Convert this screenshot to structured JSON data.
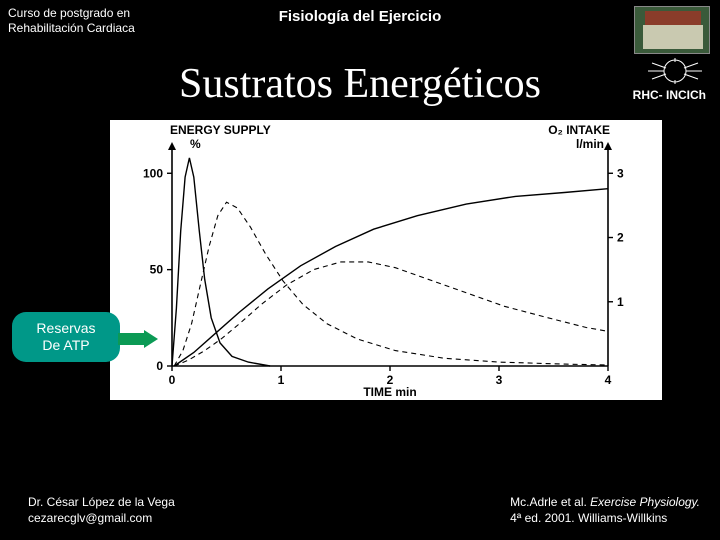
{
  "header": {
    "course_line1": "Curso de postgrado en",
    "course_line2": "Rehabilitación Cardiaca",
    "subject": "Fisiología del Ejercicio",
    "org": "RHC- INCICh"
  },
  "title": "Sustratos Energéticos",
  "callout": {
    "line1": "Reservas",
    "line2": "De ATP"
  },
  "footer": {
    "author": "Dr. César López de la Vega",
    "email": "cezarecglv@gmail.com",
    "citation_prefix": "Mc.Adrle et al. ",
    "citation_title": "Exercise Physiology.",
    "citation_suffix": "4ª ed. 2001. Williams-Willkins"
  },
  "chart": {
    "type": "line",
    "background_color": "#ffffff",
    "axis_color": "#000000",
    "line_color": "#000000",
    "line_width": 1.4,
    "dash_line_width": 1.1,
    "dash_pattern": "5,4",
    "y_left_label_top": "ENERGY SUPPLY",
    "y_left_label_unit": "%",
    "y_right_label_top": "O₂ INTAKE",
    "y_right_label_unit": "l/min",
    "x_label": "TIME min",
    "label_fontsize": 12,
    "tick_fontsize": 12,
    "x_ticks": [
      0,
      1,
      2,
      3,
      4
    ],
    "y_left_ticks": [
      0,
      50,
      100
    ],
    "y_right_ticks": [
      1,
      2,
      3
    ],
    "xlim": [
      0,
      4
    ],
    "ylim_left": [
      0,
      110
    ],
    "ylim_right": [
      0,
      3.3
    ],
    "series": {
      "atp_spike": {
        "style": "solid",
        "points": [
          [
            0.0,
            0
          ],
          [
            0.04,
            30
          ],
          [
            0.08,
            70
          ],
          [
            0.12,
            98
          ],
          [
            0.16,
            108
          ],
          [
            0.2,
            98
          ],
          [
            0.25,
            70
          ],
          [
            0.3,
            45
          ],
          [
            0.36,
            25
          ],
          [
            0.44,
            12
          ],
          [
            0.55,
            5
          ],
          [
            0.7,
            2
          ],
          [
            0.9,
            0
          ]
        ]
      },
      "cp_dashed": {
        "style": "dashed",
        "points": [
          [
            0.02,
            0
          ],
          [
            0.1,
            8
          ],
          [
            0.18,
            22
          ],
          [
            0.26,
            42
          ],
          [
            0.34,
            62
          ],
          [
            0.42,
            78
          ],
          [
            0.5,
            85
          ],
          [
            0.6,
            82
          ],
          [
            0.72,
            72
          ],
          [
            0.86,
            58
          ],
          [
            1.02,
            44
          ],
          [
            1.2,
            32
          ],
          [
            1.42,
            22
          ],
          [
            1.7,
            14
          ],
          [
            2.05,
            8
          ],
          [
            2.5,
            4
          ],
          [
            3.0,
            2
          ],
          [
            3.6,
            1
          ],
          [
            4.0,
            0.5
          ]
        ]
      },
      "glyco_dashed": {
        "style": "dashed",
        "points": [
          [
            0.02,
            0
          ],
          [
            0.15,
            3
          ],
          [
            0.3,
            8
          ],
          [
            0.45,
            14
          ],
          [
            0.62,
            22
          ],
          [
            0.82,
            32
          ],
          [
            1.05,
            42
          ],
          [
            1.3,
            50
          ],
          [
            1.55,
            54
          ],
          [
            1.8,
            54
          ],
          [
            2.05,
            51
          ],
          [
            2.35,
            45
          ],
          [
            2.7,
            38
          ],
          [
            3.05,
            31
          ],
          [
            3.45,
            25
          ],
          [
            3.8,
            20
          ],
          [
            4.0,
            18
          ]
        ]
      },
      "oxidative_solid": {
        "style": "solid",
        "points": [
          [
            0.02,
            0
          ],
          [
            0.2,
            7
          ],
          [
            0.4,
            17
          ],
          [
            0.62,
            28
          ],
          [
            0.88,
            40
          ],
          [
            1.18,
            52
          ],
          [
            1.5,
            62
          ],
          [
            1.85,
            71
          ],
          [
            2.25,
            78
          ],
          [
            2.7,
            84
          ],
          [
            3.15,
            88
          ],
          [
            3.6,
            90
          ],
          [
            4.0,
            92
          ]
        ]
      }
    }
  }
}
